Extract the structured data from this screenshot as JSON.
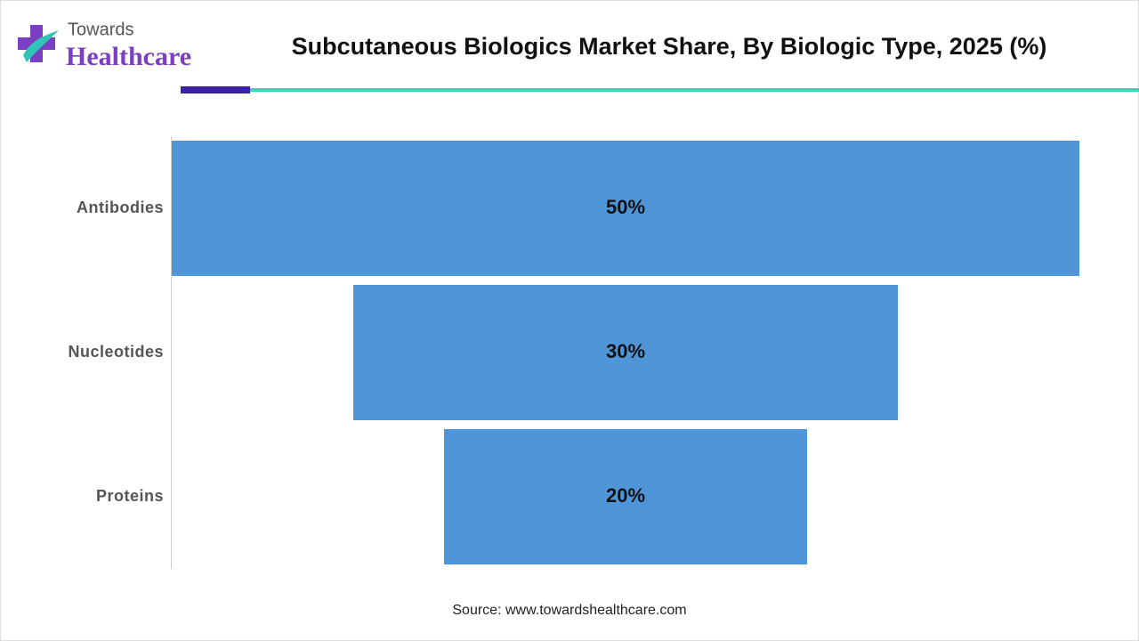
{
  "logo": {
    "top": "Towards",
    "bottom": "Healthcare"
  },
  "chart_data": {
    "type": "funnel",
    "title": "Subcutaneous Biologics Market Share, By Biologic Type, 2025 (%)",
    "categories": [
      "Antibodies",
      "Nucleotides",
      "Proteins"
    ],
    "values": [
      50,
      30,
      20
    ],
    "value_labels": [
      "50%",
      "30%",
      "20%"
    ],
    "color": "#4f96d8",
    "source": "Source: www.towardshealthcare.com"
  }
}
